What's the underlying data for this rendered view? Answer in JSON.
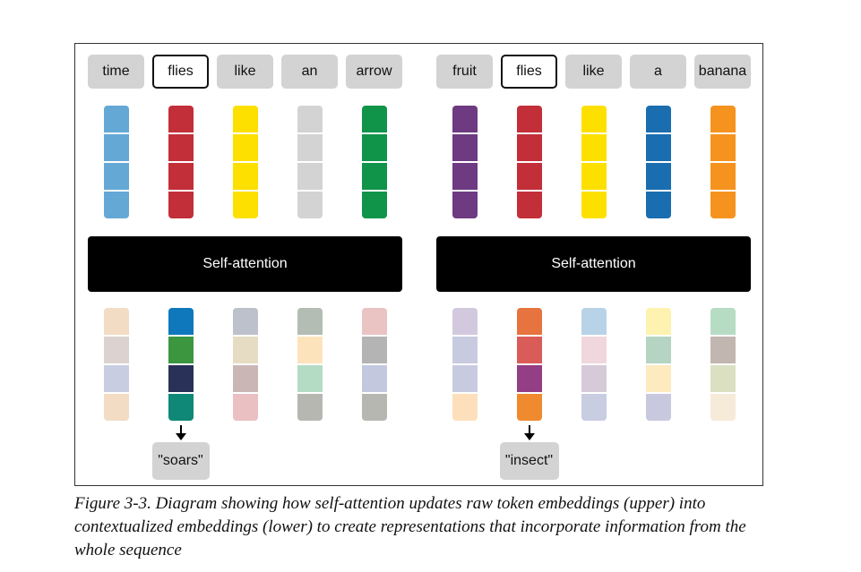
{
  "groups": [
    {
      "tokens": [
        "time",
        "flies",
        "like",
        "an",
        "arrow"
      ],
      "highlight_index": 1,
      "input_colors": [
        "#64a8d6",
        "#c22f39",
        "#fde000",
        "#d3d3d3",
        "#10944a"
      ],
      "attention_label": "Self-attention",
      "output_cells": [
        [
          "#f2dcc4",
          "#dcd3d0",
          "#c8cde2",
          "#f2dcc4"
        ],
        [
          "#0f78bc",
          "#3c9640",
          "#2a3158",
          "#108878"
        ],
        [
          "#bdc1cc",
          "#e5dcc3",
          "#cbb6b6",
          "#eac0c3"
        ],
        [
          "#b3bdb3",
          "#fde3bc",
          "#b4dcc4",
          "#b7b7b2"
        ],
        [
          "#eac3c3",
          "#b4b4b4",
          "#c4c8de",
          "#b7b7b2"
        ]
      ],
      "output_word": "\"soars\""
    },
    {
      "tokens": [
        "fruit",
        "flies",
        "like",
        "a",
        "banana"
      ],
      "highlight_index": 1,
      "input_colors": [
        "#6e3a82",
        "#c22f39",
        "#fde000",
        "#1a6eb0",
        "#f5931e"
      ],
      "attention_label": "Self-attention",
      "output_cells": [
        [
          "#d3c9df",
          "#c8cbe0",
          "#c8cbe0",
          "#fde0bb"
        ],
        [
          "#e7733e",
          "#da5c58",
          "#933e85",
          "#f08a2e"
        ],
        [
          "#b8d3e8",
          "#f0d7dd",
          "#d6cad8",
          "#c8cde2"
        ],
        [
          "#fdf2b0",
          "#b5d5c2",
          "#fdeabf",
          "#c8c9df"
        ],
        [
          "#b6dcc4",
          "#c2b6b0",
          "#dbe0c3",
          "#f6ead9"
        ]
      ],
      "output_word": "\"insect\""
    }
  ],
  "caption": "Figure 3-3. Diagram showing how self-attention updates raw token embeddings (upper) into contextualized embeddings (lower) to create representations that incorporate information from the whole sequence"
}
